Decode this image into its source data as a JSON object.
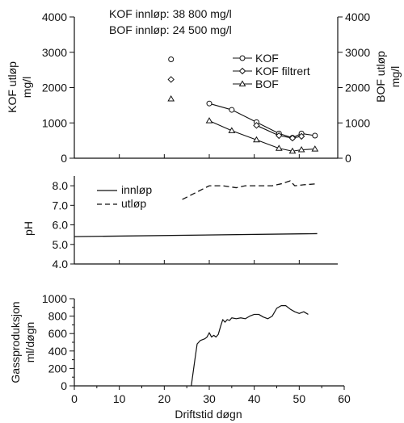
{
  "chart_data": [
    {
      "type": "line",
      "panel": "top",
      "notes": [
        "KOF innløp: 38 800 mg/l",
        "BOF innløp: 24 500 mg/l"
      ],
      "ylabel_left": [
        "KOF utløp",
        "mg/l"
      ],
      "ylabel_right": [
        "BOF utløp",
        "mg/l"
      ],
      "ylim": [
        0,
        4000
      ],
      "yticks": [
        "0",
        "1000",
        "2000",
        "3000",
        "4000"
      ],
      "legend_position": "right",
      "series": [
        {
          "name": "KOF",
          "marker": "circle",
          "connected": true,
          "x": [
            21.5,
            30,
            35,
            40.5,
            45.5,
            48.5,
            50.5,
            53.5
          ],
          "y": [
            2800,
            1550,
            1370,
            1020,
            700,
            580,
            700,
            640
          ]
        },
        {
          "name": "KOF filtrert",
          "marker": "diamond",
          "connected": true,
          "x": [
            21.5,
            40.5,
            45.5,
            48.5,
            50.5
          ],
          "y": [
            2230,
            930,
            640,
            570,
            620
          ]
        },
        {
          "name": "BOF",
          "marker": "triangle",
          "connected": true,
          "x": [
            21.5,
            30,
            35,
            40.5,
            45.5,
            48.5,
            50.5,
            53.5
          ],
          "y": [
            1680,
            1060,
            780,
            520,
            280,
            200,
            240,
            260
          ]
        }
      ]
    },
    {
      "type": "line",
      "panel": "middle",
      "ylabel": "pH",
      "ylim": [
        4.0,
        8.5
      ],
      "yticks": [
        "4.0",
        "5.0",
        "6.0",
        "7.0",
        "8.0"
      ],
      "legend_position": "top-left",
      "series": [
        {
          "name": "innløp",
          "style": "solid",
          "x": [
            0,
            54
          ],
          "y": [
            5.4,
            5.55
          ]
        },
        {
          "name": "utløp",
          "style": "dashed",
          "x": [
            24,
            30,
            33,
            36,
            38,
            40,
            42,
            44,
            46,
            48,
            49,
            51,
            54
          ],
          "y": [
            7.3,
            8.0,
            8.0,
            7.9,
            8.0,
            8.0,
            8.0,
            8.0,
            8.1,
            8.25,
            8.0,
            8.05,
            8.1
          ]
        }
      ]
    },
    {
      "type": "line",
      "panel": "bottom",
      "ylabel": [
        "Gassproduksjon",
        "ml/døgn"
      ],
      "ylim": [
        0,
        1000
      ],
      "yticks": [
        "0",
        "100",
        "200",
        "300",
        "400",
        "500",
        "600",
        "700",
        "800",
        "900",
        "1000"
      ],
      "xlabel": "Driftstid døgn",
      "xlim": [
        0,
        60
      ],
      "xticks": [
        "0",
        "10",
        "20",
        "30",
        "40",
        "50",
        "60"
      ],
      "series": [
        {
          "name": "",
          "style": "solid",
          "x": [
            26,
            26.8,
            27.3,
            28,
            29,
            29.5,
            30,
            30.5,
            31,
            31.5,
            32,
            32.5,
            33,
            33.5,
            34,
            34.5,
            35,
            36,
            37,
            38,
            39,
            40,
            41,
            42,
            43,
            44,
            45,
            46,
            47,
            48,
            49,
            50,
            51,
            52
          ],
          "y": [
            0,
            300,
            480,
            520,
            540,
            560,
            610,
            560,
            580,
            560,
            590,
            680,
            760,
            730,
            760,
            750,
            780,
            770,
            780,
            770,
            800,
            820,
            820,
            790,
            770,
            800,
            890,
            920,
            920,
            880,
            850,
            830,
            850,
            820
          ]
        }
      ]
    }
  ]
}
